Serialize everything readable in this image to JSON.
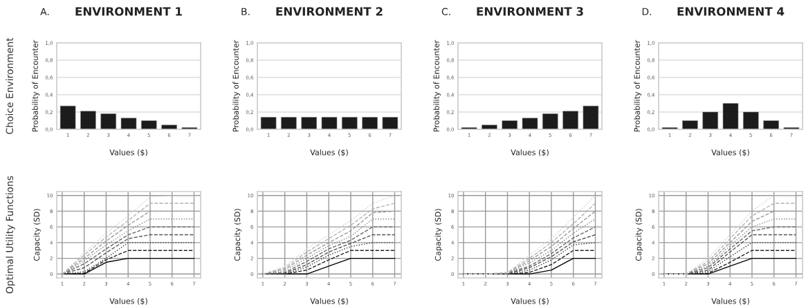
{
  "chart_data": [
    {
      "type": "bar",
      "title": "ENVIRONMENT 1",
      "annotations": [
        "A.",
        "Choice Environment"
      ],
      "xlabel": "Values ($)",
      "ylabel": "Probability of Encounter",
      "categories": [
        "1",
        "2",
        "3",
        "4",
        "5",
        "6",
        "7"
      ],
      "values": [
        0.27,
        0.21,
        0.18,
        0.13,
        0.1,
        0.05,
        0.02
      ],
      "color": "#1c1c1c",
      "ylim": [
        0,
        1
      ],
      "yticks": [
        {
          "value": 0,
          "label": "0,0"
        },
        {
          "value": 0.2,
          "label": "0,2"
        },
        {
          "value": 0.4,
          "label": "0,4"
        },
        {
          "value": 0.6,
          "label": "0,6"
        },
        {
          "value": 0.8,
          "label": "0,8"
        },
        {
          "value": 1,
          "label": "1,0"
        }
      ],
      "grid": "y"
    },
    {
      "type": "bar",
      "title": "ENVIRONMENT 2",
      "annotations": [
        "B."
      ],
      "xlabel": "Values ($)",
      "ylabel": "Probability of Encounter",
      "categories": [
        "1",
        "2",
        "3",
        "4",
        "5",
        "6",
        "7"
      ],
      "values": [
        0.14,
        0.14,
        0.14,
        0.14,
        0.14,
        0.14,
        0.14
      ],
      "color": "#1c1c1c",
      "ylim": [
        0,
        1
      ],
      "yticks": [
        {
          "value": 0,
          "label": "0,0"
        },
        {
          "value": 0.2,
          "label": "0,2"
        },
        {
          "value": 0.4,
          "label": "0,4"
        },
        {
          "value": 0.6,
          "label": "0,6"
        },
        {
          "value": 0.8,
          "label": "0,8"
        },
        {
          "value": 1,
          "label": "1,0"
        }
      ],
      "grid": "y"
    },
    {
      "type": "bar",
      "title": "ENVIRONMENT 3",
      "annotations": [
        "C."
      ],
      "xlabel": "Values ($)",
      "ylabel": "Probability of Encounter",
      "categories": [
        "1",
        "2",
        "3",
        "4",
        "5",
        "6",
        "7"
      ],
      "values": [
        0.02,
        0.05,
        0.1,
        0.13,
        0.18,
        0.21,
        0.27
      ],
      "color": "#1c1c1c",
      "ylim": [
        0,
        1
      ],
      "yticks": [
        {
          "value": 0,
          "label": "0,0"
        },
        {
          "value": 0.2,
          "label": "0,2"
        },
        {
          "value": 0.4,
          "label": "0,4"
        },
        {
          "value": 0.6,
          "label": "0,6"
        },
        {
          "value": 0.8,
          "label": "0,8"
        },
        {
          "value": 1,
          "label": "1,0"
        }
      ],
      "grid": "y"
    },
    {
      "type": "bar",
      "title": "ENVIRONMENT 4",
      "annotations": [
        "D."
      ],
      "xlabel": "Values ($)",
      "ylabel": "Probability of Encounter",
      "categories": [
        "1",
        "2",
        "3",
        "4",
        "5",
        "6",
        "7"
      ],
      "values": [
        0.02,
        0.1,
        0.2,
        0.3,
        0.2,
        0.1,
        0.02
      ],
      "color": "#1c1c1c",
      "ylim": [
        0,
        1
      ],
      "yticks": [
        {
          "value": 0,
          "label": "0,0"
        },
        {
          "value": 0.2,
          "label": "0,2"
        },
        {
          "value": 0.4,
          "label": "0,4"
        },
        {
          "value": 0.6,
          "label": "0,6"
        },
        {
          "value": 0.8,
          "label": "0,8"
        },
        {
          "value": 1,
          "label": "1,0"
        }
      ],
      "grid": "y"
    },
    {
      "type": "line",
      "annotations": [
        "Optimal Utility Functions"
      ],
      "xlabel": "Values ($)",
      "ylabel": "Capacity (SD)",
      "x": [
        1,
        2,
        3,
        4,
        5,
        6,
        7
      ],
      "xlim": [
        0.75,
        7.3
      ],
      "xticks": [
        1,
        2,
        3,
        4,
        5,
        6,
        7
      ],
      "ylim": [
        -0.5,
        10.5
      ],
      "yticks": [
        0,
        2,
        4,
        6,
        8,
        10
      ],
      "grid": true,
      "series": [
        {
          "color": "#000000",
          "line_style": "solid",
          "values": [
            0,
            0,
            1.5,
            2,
            2,
            2,
            2
          ]
        },
        {
          "color": "#222222",
          "line_style": "dashed",
          "values": [
            0,
            0.1,
            1.8,
            3,
            3,
            3,
            3
          ]
        },
        {
          "color": "#333333",
          "line_style": "dotted",
          "values": [
            0,
            0.3,
            2,
            4,
            4,
            4,
            4
          ]
        },
        {
          "color": "#555555",
          "line_style": "dashed",
          "values": [
            0,
            0.8,
            2.7,
            4.5,
            5,
            5,
            5
          ]
        },
        {
          "color": "#666666",
          "line_style": "dashed",
          "values": [
            0,
            1.3,
            3.2,
            5,
            6,
            6,
            6
          ]
        },
        {
          "color": "#808080",
          "line_style": "dotted",
          "values": [
            0,
            1.7,
            3.7,
            5.5,
            7,
            7,
            7
          ]
        },
        {
          "color": "#999999",
          "line_style": "dashed",
          "values": [
            0,
            2,
            4.2,
            6.2,
            8,
            8,
            8
          ]
        },
        {
          "color": "#b3b3b3",
          "line_style": "dashed",
          "values": [
            0,
            2.4,
            4.7,
            6.8,
            9,
            9,
            9
          ]
        },
        {
          "color": "#cccccc",
          "line_style": "dotted",
          "values": [
            0,
            2.7,
            5.2,
            7.4,
            9.8,
            10,
            10
          ]
        }
      ]
    },
    {
      "type": "line",
      "xlabel": "Values ($)",
      "ylabel": "Capacity (SD)",
      "x": [
        1,
        2,
        3,
        4,
        5,
        6,
        7
      ],
      "xlim": [
        0.75,
        7.3
      ],
      "xticks": [
        1,
        2,
        3,
        4,
        5,
        6,
        7
      ],
      "ylim": [
        -0.5,
        10.5
      ],
      "yticks": [
        0,
        2,
        4,
        6,
        8,
        10
      ],
      "grid": true,
      "series": [
        {
          "color": "#000000",
          "line_style": "solid",
          "values": [
            0,
            0,
            0,
            1,
            2,
            2,
            2
          ]
        },
        {
          "color": "#222222",
          "line_style": "dashed",
          "values": [
            0,
            0,
            0.5,
            1.8,
            3,
            3,
            3
          ]
        },
        {
          "color": "#333333",
          "line_style": "dotted",
          "values": [
            0,
            0,
            0.9,
            2.4,
            3.5,
            4,
            4
          ]
        },
        {
          "color": "#555555",
          "line_style": "dashed",
          "values": [
            0,
            0.1,
            1.2,
            2.8,
            3.9,
            5,
            5
          ]
        },
        {
          "color": "#666666",
          "line_style": "dashed",
          "values": [
            0,
            0.2,
            1.6,
            3.2,
            4.3,
            6,
            6
          ]
        },
        {
          "color": "#808080",
          "line_style": "dotted",
          "values": [
            0,
            0.4,
            2,
            3.6,
            4.8,
            7,
            7
          ]
        },
        {
          "color": "#999999",
          "line_style": "dashed",
          "values": [
            0,
            0.6,
            2.4,
            4,
            5.5,
            7.8,
            8
          ]
        },
        {
          "color": "#b3b3b3",
          "line_style": "dashed",
          "values": [
            0,
            0.8,
            2.8,
            4.5,
            6.2,
            8.3,
            9
          ]
        },
        {
          "color": "#cccccc",
          "line_style": "dotted",
          "values": [
            0,
            1,
            3.2,
            5,
            6.8,
            9,
            10
          ]
        }
      ]
    },
    {
      "type": "line",
      "xlabel": "Values ($)",
      "ylabel": "Capacity (SD)",
      "x": [
        1,
        2,
        3,
        4,
        5,
        6,
        7
      ],
      "xlim": [
        0.75,
        7.3
      ],
      "xticks": [
        1,
        2,
        3,
        4,
        5,
        6,
        7
      ],
      "ylim": [
        -0.5,
        10.5
      ],
      "yticks": [
        0,
        2,
        4,
        6,
        8,
        10
      ],
      "grid": true,
      "series": [
        {
          "color": "#000000",
          "line_style": "solid",
          "values": [
            0,
            0,
            0,
            0,
            0.5,
            2,
            2
          ]
        },
        {
          "color": "#222222",
          "line_style": "dashed",
          "values": [
            0,
            0,
            0,
            0.2,
            1.2,
            3,
            3
          ]
        },
        {
          "color": "#333333",
          "line_style": "dotted",
          "values": [
            0,
            0,
            0,
            0.5,
            1.8,
            3.7,
            4
          ]
        },
        {
          "color": "#555555",
          "line_style": "dashed",
          "values": [
            0,
            0,
            0,
            0.8,
            2.2,
            4.1,
            5
          ]
        },
        {
          "color": "#666666",
          "line_style": "dashed",
          "values": [
            0,
            0,
            0.1,
            1,
            2.6,
            4.6,
            6
          ]
        },
        {
          "color": "#808080",
          "line_style": "dotted",
          "values": [
            0,
            0,
            0.1,
            1.4,
            3,
            5.2,
            7
          ]
        },
        {
          "color": "#999999",
          "line_style": "dashed",
          "values": [
            0,
            0,
            0.1,
            1.7,
            3.5,
            5.8,
            8
          ]
        },
        {
          "color": "#b3b3b3",
          "line_style": "dashed",
          "values": [
            0,
            0,
            0.2,
            2,
            4,
            6.4,
            9
          ]
        },
        {
          "color": "#cccccc",
          "line_style": "dotted",
          "values": [
            0,
            0,
            0.2,
            2.4,
            4.5,
            7.2,
            10
          ]
        }
      ]
    },
    {
      "type": "line",
      "xlabel": "Values ($)",
      "ylabel": "Capacity (SD)",
      "x": [
        1,
        2,
        3,
        4,
        5,
        6,
        7
      ],
      "xlim": [
        0.75,
        7.3
      ],
      "xticks": [
        1,
        2,
        3,
        4,
        5,
        6,
        7
      ],
      "ylim": [
        -0.5,
        10.5
      ],
      "yticks": [
        0,
        2,
        4,
        6,
        8,
        10
      ],
      "grid": true,
      "series": [
        {
          "color": "#000000",
          "line_style": "solid",
          "values": [
            0,
            0,
            0,
            1,
            2,
            2,
            2
          ]
        },
        {
          "color": "#222222",
          "line_style": "dashed",
          "values": [
            0,
            0,
            0.1,
            1.5,
            3,
            3,
            3
          ]
        },
        {
          "color": "#333333",
          "line_style": "dotted",
          "values": [
            0,
            0,
            0.3,
            2.2,
            4,
            4,
            4
          ]
        },
        {
          "color": "#555555",
          "line_style": "dashed",
          "values": [
            0,
            0,
            0.5,
            2.8,
            5,
            5,
            5
          ]
        },
        {
          "color": "#666666",
          "line_style": "dashed",
          "values": [
            0,
            0,
            0.8,
            3.2,
            5.5,
            6,
            6
          ]
        },
        {
          "color": "#808080",
          "line_style": "dotted",
          "values": [
            0,
            0,
            1,
            3.6,
            6,
            7,
            7
          ]
        },
        {
          "color": "#999999",
          "line_style": "dashed",
          "values": [
            0,
            0,
            1.3,
            4,
            6.7,
            8,
            8
          ]
        },
        {
          "color": "#b3b3b3",
          "line_style": "dashed",
          "values": [
            0,
            0,
            1.6,
            4.5,
            7.4,
            9,
            9
          ]
        },
        {
          "color": "#cccccc",
          "line_style": "dotted",
          "values": [
            0,
            0,
            2,
            5,
            8,
            10,
            10
          ]
        }
      ]
    }
  ]
}
